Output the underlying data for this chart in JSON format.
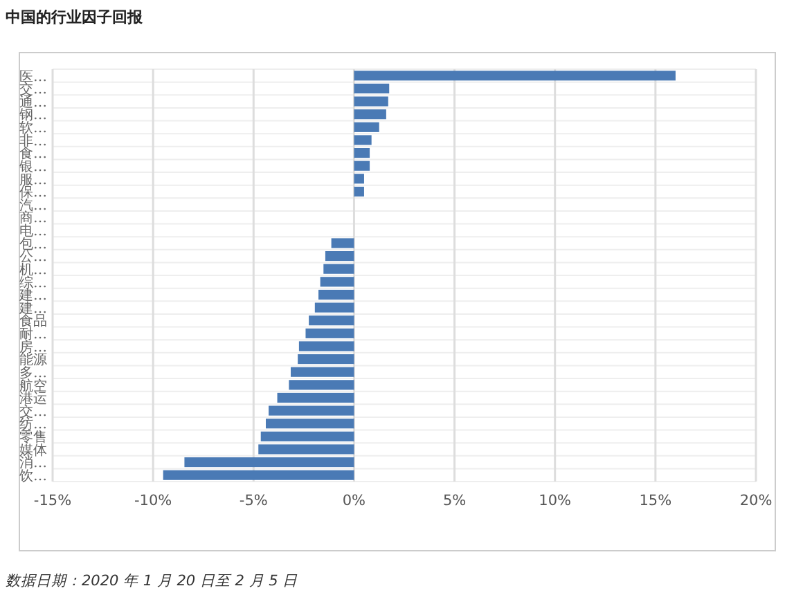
{
  "chart_data": {
    "type": "bar",
    "orientation": "horizontal",
    "title": "中国的行业因子回报",
    "categories": [
      "医…",
      "交…",
      "通…",
      "钢…",
      "软…",
      "非…",
      "食…",
      "银…",
      "服…",
      "保…",
      "汽…",
      "商…",
      "电…",
      "包…",
      "公…",
      "机…",
      "综…",
      "建…",
      "建…",
      "食品",
      "耐…",
      "房…",
      "能源",
      "多…",
      "航空",
      "港运",
      "交…",
      "纺…",
      "零售",
      "媒体",
      "消…",
      "饮…"
    ],
    "values": [
      16,
      1.75,
      1.7,
      1.6,
      1.25,
      0.87,
      0.78,
      0.78,
      0.5,
      0.5,
      0,
      0,
      0,
      -1.13,
      -1.43,
      -1.52,
      -1.68,
      -1.77,
      -1.95,
      -2.25,
      -2.41,
      -2.74,
      -2.8,
      -3.15,
      -3.24,
      -3.82,
      -4.25,
      -4.39,
      -4.64,
      -4.76,
      -8.44,
      -9.5
    ],
    "color": "#4a7ab5",
    "xlim": [
      -15,
      20
    ],
    "xticks": [
      {
        "value": -15,
        "label": "-15%"
      },
      {
        "value": -10,
        "label": "-10%"
      },
      {
        "value": -5,
        "label": "-5%"
      },
      {
        "value": 0,
        "label": "0%"
      },
      {
        "value": 5,
        "label": "5%"
      },
      {
        "value": 10,
        "label": "10%"
      },
      {
        "value": 15,
        "label": "15%"
      },
      {
        "value": 20,
        "label": "20%"
      }
    ],
    "grid": true,
    "annotations": [
      "数据日期：2020 年 1 月 20 日至 2 月 5 日"
    ]
  }
}
